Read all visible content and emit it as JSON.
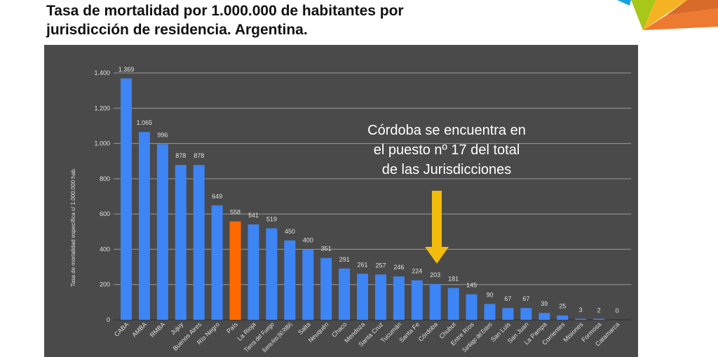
{
  "title": {
    "line1": "Tasa de mortalidad por 1.000.000 de habitantes por",
    "line2": "jurisdicción de residencia. Argentina."
  },
  "logo": {
    "colors": [
      "#1aa3e0",
      "#a7c818",
      "#f5b324",
      "#ec7a30",
      "#d96b2a"
    ]
  },
  "annotation": {
    "lines": [
      "Córdoba se encuentra en",
      "el puesto nº 17 del total",
      "de las Jurisdicciones"
    ],
    "arrow_icon": "arrow-down-icon",
    "arrow_color": "#f2bc0c"
  },
  "chart_data": {
    "type": "bar",
    "title": "",
    "xlabel": "",
    "ylabel": "Tasa de mortalidad específica c/ 1.000.000 hab.",
    "ylim": [
      0,
      1400
    ],
    "yticks": [
      0,
      200,
      400,
      600,
      800,
      1000,
      1200,
      1400
    ],
    "ytick_labels": [
      "0",
      "200",
      "400",
      "600",
      "800",
      "1.000",
      "1.200",
      "1.400"
    ],
    "grid": true,
    "background": "#4a4a4a",
    "bar_color": "#3d84f5",
    "highlight_color": "#ff6a00",
    "highlight_category": "País",
    "categories": [
      "CABA",
      "AMBA",
      "RMBA",
      "Jujuy",
      "Buenos Aires",
      "Río Negro",
      "País",
      "La Rioja",
      "Tierra del Fuego",
      "Buenos Aires (NO RMBA)",
      "Salta",
      "Neuquén",
      "Chaco",
      "Mendoza",
      "Santa Cruz",
      "Tucumán",
      "Santa Fe",
      "Córdoba",
      "Chubut",
      "Entre Ríos",
      "Santiago del Estero",
      "San Luis",
      "San Juan",
      "La Pampa",
      "Corrientes",
      "Misiones",
      "Formosa",
      "Catamarca"
    ],
    "values": [
      1369,
      1065,
      996,
      878,
      878,
      649,
      558,
      541,
      519,
      450,
      400,
      351,
      291,
      261,
      257,
      246,
      224,
      203,
      181,
      145,
      90,
      67,
      67,
      39,
      25,
      3,
      2,
      0
    ],
    "value_labels": [
      "1.369",
      "1.065",
      "996",
      "878",
      "878",
      "649",
      "558",
      "541",
      "519",
      "450",
      "400",
      "351",
      "291",
      "261",
      "257",
      "246",
      "224",
      "203",
      "181",
      "145",
      "90",
      "67",
      "67",
      "39",
      "25",
      "3",
      "2",
      "0"
    ]
  }
}
